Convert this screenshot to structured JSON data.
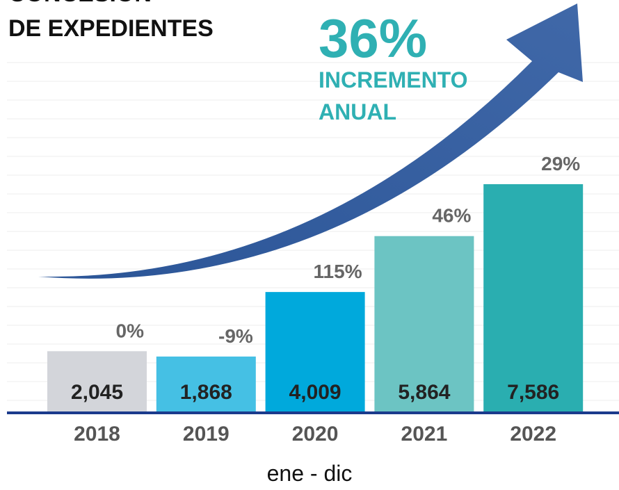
{
  "chart_data": {
    "type": "bar",
    "title": [
      "CONCESIÓN",
      "DE EXPEDIENTES"
    ],
    "headline": "36%",
    "headline_lines": [
      "INCREMENTO",
      "ANUAL"
    ],
    "categories": [
      "2018",
      "2019",
      "2020",
      "2021",
      "2022"
    ],
    "values": [
      2045,
      1868,
      4009,
      5864,
      7586
    ],
    "value_labels": [
      "2,045",
      "1,868",
      "4,009",
      "5,864",
      "7,586"
    ],
    "annotations": [
      "0%",
      "-9%",
      "115%",
      "46%",
      "29%"
    ],
    "colors": [
      "#d3d5da",
      "#45c0e4",
      "#00a9dc",
      "#6cc4c3",
      "#2aaeb0"
    ],
    "xlabel": "ene - dic"
  }
}
